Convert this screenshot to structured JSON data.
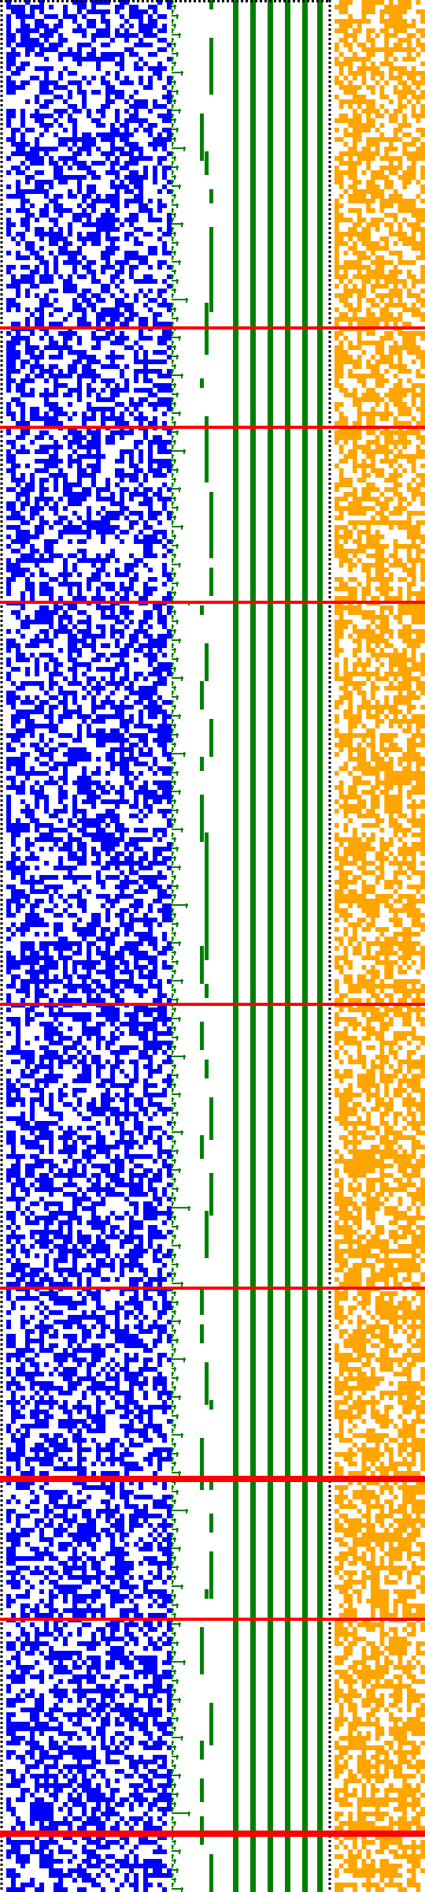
{
  "colors": {
    "background": "#ffffff",
    "cells_left": "#0000ff",
    "stair_lines": "#008000",
    "bars": "#008000",
    "cells_right": "#ffa500",
    "separators": "#ff0000",
    "border_dots": "#000000"
  },
  "grid": {
    "rows": 400,
    "left_cols": 35,
    "right_cols": 20,
    "left_density": 0.52,
    "right_density": 0.62
  },
  "separator_rows": [
    {
      "row": 69,
      "weight": 1
    },
    {
      "row": 90,
      "weight": 1
    },
    {
      "row": 127,
      "weight": 1
    },
    {
      "row": 212,
      "weight": 1
    },
    {
      "row": 272,
      "weight": 1
    },
    {
      "row": 312,
      "weight": 2
    },
    {
      "row": 342,
      "weight": 1
    },
    {
      "row": 387,
      "weight": 2
    }
  ],
  "bars": {
    "count": 6,
    "full_height": [
      true,
      true,
      true,
      true,
      true,
      true
    ]
  },
  "icon": "bit-pattern-visualization"
}
